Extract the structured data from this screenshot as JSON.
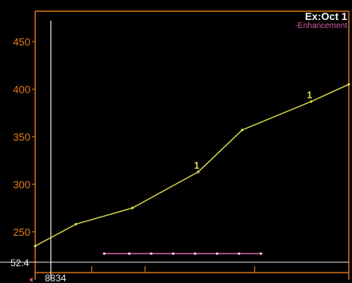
{
  "chart_data": {
    "type": "line",
    "title": "Ex:Oct 1",
    "legend": "-Enhancement",
    "legend_position": "top-right",
    "ylim": [
      223,
      482
    ],
    "yticks": [
      "450",
      "400",
      "350",
      "300",
      "250"
    ],
    "ytick_values": [
      450,
      400,
      350,
      300,
      250
    ],
    "baseline_label": "52.4",
    "xlim": [
      0,
      100
    ],
    "cursor_label": "8834",
    "cursor_x": 5,
    "grid": false,
    "series": [
      {
        "color": "#d7d94a",
        "x": [
          0,
          13,
          31,
          52,
          66,
          88,
          100
        ],
        "y": [
          235,
          258,
          275,
          313,
          357,
          387,
          405
        ]
      }
    ],
    "annotations": [
      {
        "text": "1",
        "x": 52,
        "y": 313
      },
      {
        "text": "1",
        "x": 88,
        "y": 387
      }
    ],
    "reference_line": {
      "color": "#d65aa8",
      "y": 227,
      "x": [
        22,
        30,
        37,
        44,
        51,
        58,
        65,
        72
      ]
    }
  }
}
